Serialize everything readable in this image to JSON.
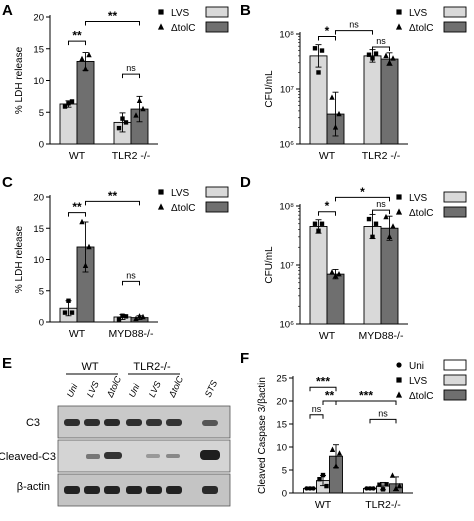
{
  "colors": {
    "light_bar": "#d9d9d9",
    "dark_bar": "#6f6f6f",
    "ink": "#000000"
  },
  "chart_data": [
    {
      "panel": "A",
      "type": "bar",
      "ylabel": "% LDH release",
      "ylim": [
        0,
        20
      ],
      "yscale": "linear",
      "yticks": [
        0,
        5,
        10,
        15,
        20
      ],
      "ytick_labels": [
        "0",
        "5",
        "10",
        "15",
        "20"
      ],
      "groups": [
        "WT",
        "TLR2 -/-"
      ],
      "series": [
        {
          "name": "LVS",
          "marker": "square",
          "values": [
            6.3,
            3.4
          ],
          "errors": [
            0.5,
            1.5
          ],
          "points": [
            [
              5.9,
              6.4,
              6.7
            ],
            [
              2.5,
              4.0,
              3.4
            ]
          ]
        },
        {
          "name": "ΔtolC",
          "marker": "triangle",
          "values": [
            13.0,
            5.5
          ],
          "errors": [
            1.4,
            2.0
          ],
          "points": [
            [
              13.4,
              11.8,
              14.0
            ],
            [
              4.5,
              6.8,
              5.5
            ]
          ]
        }
      ],
      "legend": {
        "position": "top-right",
        "entries": [
          "LVS",
          "ΔtolC"
        ]
      },
      "annotations": [
        {
          "label": "**",
          "from": [
            0,
            0
          ],
          "to": [
            0,
            1
          ],
          "level": 16.2
        },
        {
          "label": "**",
          "from": [
            0,
            1
          ],
          "to": [
            1,
            1
          ],
          "level": 19.3
        },
        {
          "label": "ns",
          "from": [
            1,
            0
          ],
          "to": [
            1,
            1
          ],
          "level": 11.0
        }
      ]
    },
    {
      "panel": "B",
      "type": "bar",
      "ylabel": "CFU/mL",
      "ylim": [
        1000000,
        100000000
      ],
      "yscale": "log",
      "yticks": [
        1000000,
        10000000,
        100000000
      ],
      "ytick_labels": [
        "10⁶",
        "10⁷",
        "10⁸"
      ],
      "groups": [
        "WT",
        "TLR2 -/-"
      ],
      "series": [
        {
          "name": "LVS",
          "marker": "square",
          "values": [
            40000000,
            40000000
          ],
          "errors": [
            1.6,
            1.3
          ],
          "points": [
            [
              55000000,
              20000000,
              50000000
            ],
            [
              42000000,
              36000000,
              44000000
            ]
          ]
        },
        {
          "name": "ΔtolC",
          "marker": "triangle",
          "values": [
            3500000,
            35000000
          ],
          "errors": [
            2.5,
            1.3
          ],
          "points": [
            [
              7000000,
              2000000,
              3500000
            ],
            [
              40000000,
              30000000,
              36000000
            ]
          ]
        }
      ],
      "legend": {
        "position": "top-right",
        "entries": [
          "LVS",
          "ΔtolC"
        ]
      },
      "annotations": [
        {
          "label": "*",
          "from": [
            0,
            0
          ],
          "to": [
            0,
            1
          ],
          "level": 90000000
        },
        {
          "label": "ns",
          "from": [
            0,
            1
          ],
          "to": [
            1,
            0
          ],
          "level": 115000000
        },
        {
          "label": "ns",
          "from": [
            1,
            0
          ],
          "to": [
            1,
            1
          ],
          "level": 58000000
        }
      ]
    },
    {
      "panel": "C",
      "type": "bar",
      "ylabel": "% LDH release",
      "ylim": [
        0,
        20
      ],
      "yscale": "linear",
      "yticks": [
        0,
        5,
        10,
        15,
        20
      ],
      "ytick_labels": [
        "0",
        "5",
        "10",
        "15",
        "20"
      ],
      "groups": [
        "WT",
        "MYD88-/-"
      ],
      "series": [
        {
          "name": "LVS",
          "marker": "square",
          "values": [
            2.2,
            0.8
          ],
          "errors": [
            1.2,
            0.4
          ],
          "points": [
            [
              1.5,
              3.4,
              1.5
            ],
            [
              0.4,
              1.0,
              0.9
            ]
          ]
        },
        {
          "name": "ΔtolC",
          "marker": "triangle",
          "values": [
            12.0,
            0.7
          ],
          "errors": [
            4.0,
            0.3
          ],
          "points": [
            [
              16.0,
              9.0,
              12.0
            ],
            [
              0.5,
              0.9,
              0.8
            ]
          ]
        }
      ],
      "legend": {
        "position": "top-right",
        "entries": [
          "LVS",
          "ΔtolC"
        ]
      },
      "annotations": [
        {
          "label": "**",
          "from": [
            0,
            0
          ],
          "to": [
            0,
            1
          ],
          "level": 17.5
        },
        {
          "label": "**",
          "from": [
            0,
            1
          ],
          "to": [
            1,
            1
          ],
          "level": 19.3
        },
        {
          "label": "ns",
          "from": [
            1,
            0
          ],
          "to": [
            1,
            1
          ],
          "level": 6.5
        }
      ]
    },
    {
      "panel": "D",
      "type": "bar",
      "ylabel": "CFU/mL",
      "ylim": [
        1000000,
        100000000
      ],
      "yscale": "log",
      "yticks": [
        1000000,
        10000000,
        100000000
      ],
      "ytick_labels": [
        "10⁶",
        "10⁷",
        "10⁸"
      ],
      "groups": [
        "WT",
        "MYD88-/-"
      ],
      "series": [
        {
          "name": "LVS",
          "marker": "square",
          "values": [
            45000000,
            45000000
          ],
          "errors": [
            1.3,
            1.6
          ],
          "points": [
            [
              50000000,
              38000000,
              50000000
            ],
            [
              60000000,
              30000000,
              50000000
            ]
          ]
        },
        {
          "name": "ΔtolC",
          "marker": "triangle",
          "values": [
            7000000,
            42000000
          ],
          "errors": [
            1.2,
            1.6
          ],
          "points": [
            [
              7500000,
              6500000,
              7000000
            ],
            [
              65000000,
              30000000,
              45000000
            ]
          ]
        }
      ],
      "legend": {
        "position": "top-right",
        "entries": [
          "LVS",
          "ΔtolC"
        ]
      },
      "annotations": [
        {
          "label": "*",
          "from": [
            0,
            0
          ],
          "to": [
            0,
            1
          ],
          "level": 80000000
        },
        {
          "label": "*",
          "from": [
            0,
            1
          ],
          "to": [
            1,
            1
          ],
          "level": 140000000
        },
        {
          "label": "ns",
          "from": [
            1,
            0
          ],
          "to": [
            1,
            1
          ],
          "level": 85000000
        }
      ]
    },
    {
      "panel": "F",
      "type": "bar",
      "ylabel": "Cleaved Caspase 3/βactin",
      "ylim": [
        0,
        25
      ],
      "yscale": "linear",
      "yticks": [
        0,
        5,
        10,
        15,
        20,
        25
      ],
      "ytick_labels": [
        "0",
        "5",
        "10",
        "15",
        "20",
        "25"
      ],
      "groups": [
        "WT",
        "TLR2-/-"
      ],
      "series": [
        {
          "name": "Uni",
          "marker": "circle",
          "values": [
            1.0,
            1.0
          ],
          "errors": [
            0.3,
            0.3
          ],
          "points": [
            [
              1.0,
              1.0,
              1.0
            ],
            [
              1.0,
              1.0,
              1.0
            ]
          ]
        },
        {
          "name": "LVS",
          "marker": "square",
          "values": [
            2.7,
            1.5
          ],
          "errors": [
            1.1,
            0.8
          ],
          "points": [
            [
              3.0,
              3.9,
              1.5
            ],
            [
              1.8,
              0.8,
              1.9
            ]
          ]
        },
        {
          "name": "ΔtolC",
          "marker": "triangle",
          "values": [
            8.0,
            2.0
          ],
          "errors": [
            2.5,
            1.5
          ],
          "points": [
            [
              9.4,
              5.8,
              8.6
            ],
            [
              3.8,
              1.0,
              1.5
            ]
          ]
        }
      ],
      "legend": {
        "position": "top-right",
        "entries": [
          "Uni",
          "LVS",
          "ΔtolC"
        ]
      },
      "annotations": [
        {
          "label": "ns",
          "from": [
            0,
            0
          ],
          "to": [
            0,
            1
          ],
          "level": 17.0
        },
        {
          "label": "**",
          "from": [
            0,
            1
          ],
          "to": [
            0,
            2
          ],
          "level": 20.0
        },
        {
          "label": "***",
          "from": [
            0,
            0
          ],
          "to": [
            0,
            2
          ],
          "level": 23.0
        },
        {
          "label": "***",
          "from": [
            0,
            2
          ],
          "to": [
            1,
            2
          ],
          "level": 20.0
        },
        {
          "label": "ns",
          "from": [
            1,
            0
          ],
          "to": [
            1,
            2
          ],
          "level": 16.0
        }
      ]
    }
  ],
  "western_blot": {
    "panel": "E",
    "group_labels": [
      "WT",
      "TLR2-/-"
    ],
    "lane_labels": [
      "Uni",
      "LVS",
      "ΔtolC",
      "Uni",
      "LVS",
      "ΔtolC",
      "STS"
    ],
    "row_labels": [
      "C3",
      "Cleaved-C3",
      "β-actin"
    ]
  }
}
